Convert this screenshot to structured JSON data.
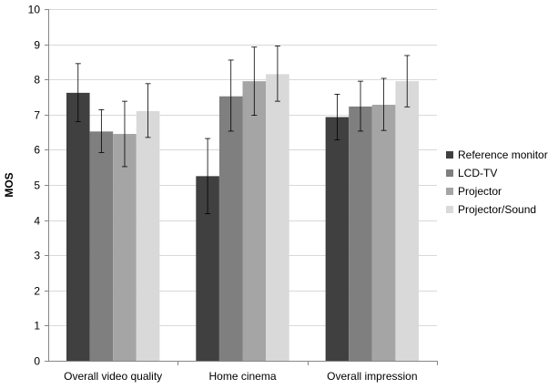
{
  "chart_data": {
    "type": "bar",
    "title": "",
    "xlabel": "",
    "ylabel": "MOS",
    "ylim": [
      0,
      10
    ],
    "yticks": [
      "0",
      "1",
      "2",
      "3",
      "4",
      "5",
      "6",
      "7",
      "8",
      "9",
      "10"
    ],
    "grid": "horizontal",
    "legend_position": "right",
    "categories": [
      "Overall video quality",
      "Home cinema",
      "Overall impression"
    ],
    "series": [
      {
        "name": "Reference monitor",
        "color": "#404040",
        "values": [
          7.62,
          5.25,
          6.93
        ],
        "error_low": [
          6.8,
          4.18,
          6.28
        ],
        "error_high": [
          8.45,
          6.32,
          7.58
        ]
      },
      {
        "name": "LCD-TV",
        "color": "#7f7f7f",
        "values": [
          6.52,
          7.52,
          7.23
        ],
        "error_low": [
          5.92,
          6.53,
          6.53
        ],
        "error_high": [
          7.14,
          8.55,
          7.95
        ]
      },
      {
        "name": "Projector",
        "color": "#a5a5a5",
        "values": [
          6.45,
          7.95,
          7.28
        ],
        "error_low": [
          5.52,
          6.98,
          6.55
        ],
        "error_high": [
          7.38,
          8.92,
          8.03
        ]
      },
      {
        "name": "Projector/Sound",
        "color": "#d9d9d9",
        "values": [
          7.1,
          8.15,
          7.95
        ],
        "error_low": [
          6.35,
          7.38,
          7.22
        ],
        "error_high": [
          7.88,
          8.95,
          8.68
        ]
      }
    ]
  }
}
